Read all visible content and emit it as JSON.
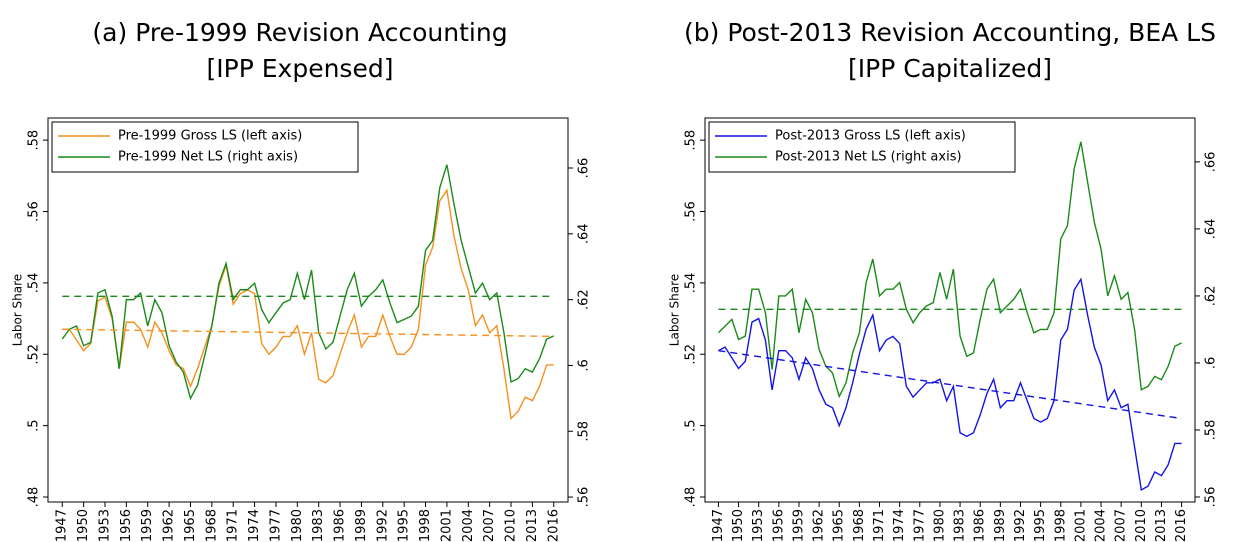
{
  "chart_data": [
    {
      "type": "line",
      "title": "(a) Pre-1999 Revision Accounting",
      "subtitle": "[IPP Expensed]",
      "y_label": "Labor Share",
      "legend": "upper left",
      "x": [
        1947,
        1948,
        1949,
        1950,
        1951,
        1952,
        1953,
        1954,
        1955,
        1956,
        1957,
        1958,
        1959,
        1960,
        1961,
        1962,
        1963,
        1964,
        1965,
        1966,
        1967,
        1968,
        1969,
        1970,
        1971,
        1972,
        1973,
        1974,
        1975,
        1976,
        1977,
        1978,
        1979,
        1980,
        1981,
        1982,
        1983,
        1984,
        1985,
        1986,
        1987,
        1988,
        1989,
        1990,
        1991,
        1992,
        1993,
        1994,
        1995,
        1996,
        1997,
        1998,
        1999,
        2000,
        2001,
        2002,
        2003,
        2004,
        2005,
        2006,
        2007,
        2008,
        2009,
        2010,
        2011,
        2012,
        2013,
        2014,
        2015,
        2016
      ],
      "xlim": [
        1945,
        2018
      ],
      "xticks": [
        1947,
        1950,
        1953,
        1956,
        1959,
        1962,
        1965,
        1968,
        1971,
        1974,
        1977,
        1980,
        1983,
        1986,
        1989,
        1992,
        1995,
        1998,
        2001,
        2004,
        2007,
        2010,
        2013,
        2016
      ],
      "ylim": [
        0.4786,
        0.5862
      ],
      "yticks": [
        {
          "value": 0.48,
          "label": ".48"
        },
        {
          "value": 0.5,
          "label": ".5"
        },
        {
          "value": 0.52,
          "label": ".52"
        },
        {
          "value": 0.54,
          "label": ".54"
        },
        {
          "value": 0.56,
          "label": ".56"
        },
        {
          "value": 0.58,
          "label": ".58"
        }
      ],
      "y2lim": [
        0.5585,
        0.6752
      ],
      "y2ticks": [
        {
          "value": 0.56,
          "label": ".56"
        },
        {
          "value": 0.58,
          "label": ".58"
        },
        {
          "value": 0.6,
          "label": ".6"
        },
        {
          "value": 0.62,
          "label": ".62"
        },
        {
          "value": 0.64,
          "label": ".64"
        },
        {
          "value": 0.66,
          "label": ".66"
        }
      ],
      "series": [
        {
          "name": "Pre-1999 Gross LS (left axis)",
          "color": "#f5901e",
          "values": [
            0.527,
            0.527,
            0.524,
            0.521,
            0.523,
            0.535,
            0.536,
            0.53,
            0.516,
            0.529,
            0.529,
            0.527,
            0.522,
            0.529,
            0.526,
            0.521,
            0.517,
            0.516,
            0.511,
            0.516,
            0.522,
            0.528,
            0.539,
            0.545,
            0.534,
            0.537,
            0.538,
            0.537,
            0.523,
            0.52,
            0.522,
            0.525,
            0.525,
            0.528,
            0.52,
            0.526,
            0.513,
            0.512,
            0.514,
            0.52,
            0.526,
            0.531,
            0.522,
            0.525,
            0.525,
            0.531,
            0.525,
            0.52,
            0.52,
            0.522,
            0.527,
            0.545,
            0.55,
            0.563,
            0.566,
            0.553,
            0.544,
            0.538,
            0.528,
            0.531,
            0.526,
            0.528,
            0.516,
            0.502,
            0.504,
            0.508,
            0.507,
            0.511,
            0.517,
            0.517
          ]
        },
        {
          "name": "Pre-1999 Net LS (right axis)",
          "color": "#1a8a1a",
          "axis": "y2",
          "values": [
            0.608,
            0.611,
            0.612,
            0.606,
            0.607,
            0.622,
            0.623,
            0.615,
            0.599,
            0.62,
            0.62,
            0.622,
            0.612,
            0.62,
            0.616,
            0.606,
            0.601,
            0.598,
            0.59,
            0.594,
            0.603,
            0.612,
            0.625,
            0.631,
            0.62,
            0.623,
            0.623,
            0.625,
            0.617,
            0.613,
            0.616,
            0.619,
            0.62,
            0.628,
            0.62,
            0.629,
            0.61,
            0.605,
            0.607,
            0.615,
            0.623,
            0.628,
            0.618,
            0.621,
            0.623,
            0.626,
            0.619,
            0.613,
            0.614,
            0.615,
            0.618,
            0.635,
            0.638,
            0.654,
            0.661,
            0.649,
            0.638,
            0.63,
            0.622,
            0.625,
            0.62,
            0.622,
            0.61,
            0.595,
            0.596,
            0.599,
            0.598,
            0.602,
            0.608,
            0.609
          ]
        },
        {
          "color": "#f5901e",
          "dashed": true,
          "x": [
            1947,
            2016
          ],
          "values": [
            0.527,
            0.525
          ]
        },
        {
          "color": "#1a8a1a",
          "dashed": true,
          "axis": "y2",
          "x": [
            1947,
            2016
          ],
          "values": [
            0.621,
            0.621
          ]
        }
      ]
    },
    {
      "type": "line",
      "title": "(b) Post-2013 Revision Accounting, BEA LS",
      "subtitle": "[IPP Capitalized]",
      "y_label": "Labor Share",
      "legend": "upper left",
      "x": [
        1947,
        1948,
        1949,
        1950,
        1951,
        1952,
        1953,
        1954,
        1955,
        1956,
        1957,
        1958,
        1959,
        1960,
        1961,
        1962,
        1963,
        1964,
        1965,
        1966,
        1967,
        1968,
        1969,
        1970,
        1971,
        1972,
        1973,
        1974,
        1975,
        1976,
        1977,
        1978,
        1979,
        1980,
        1981,
        1982,
        1983,
        1984,
        1985,
        1986,
        1987,
        1988,
        1989,
        1990,
        1991,
        1992,
        1993,
        1994,
        1995,
        1996,
        1997,
        1998,
        1999,
        2000,
        2001,
        2002,
        2003,
        2004,
        2005,
        2006,
        2007,
        2008,
        2009,
        2010,
        2011,
        2012,
        2013,
        2014,
        2015,
        2016
      ],
      "xlim": [
        1945,
        2018
      ],
      "xticks": [
        1947,
        1950,
        1953,
        1956,
        1959,
        1962,
        1965,
        1968,
        1971,
        1974,
        1977,
        1980,
        1983,
        1986,
        1989,
        1992,
        1995,
        1998,
        2001,
        2004,
        2007,
        2010,
        2013,
        2016
      ],
      "ylim": [
        0.4786,
        0.5862
      ],
      "yticks": [
        {
          "value": 0.48,
          "label": ".48"
        },
        {
          "value": 0.5,
          "label": ".5"
        },
        {
          "value": 0.52,
          "label": ".52"
        },
        {
          "value": 0.54,
          "label": ".54"
        },
        {
          "value": 0.56,
          "label": ".56"
        },
        {
          "value": 0.58,
          "label": ".58"
        }
      ],
      "y2lim": [
        0.5585,
        0.6731
      ],
      "y2ticks": [
        {
          "value": 0.56,
          "label": ".56"
        },
        {
          "value": 0.58,
          "label": ".58"
        },
        {
          "value": 0.6,
          "label": ".6"
        },
        {
          "value": 0.62,
          "label": ".62"
        },
        {
          "value": 0.64,
          "label": ".64"
        },
        {
          "value": 0.66,
          "label": ".66"
        }
      ],
      "series": [
        {
          "name": "Post-2013 Gross LS (left axis)",
          "color": "#1414e6",
          "values": [
            0.521,
            0.522,
            0.519,
            0.516,
            0.518,
            0.529,
            0.53,
            0.524,
            0.51,
            0.521,
            0.521,
            0.519,
            0.513,
            0.519,
            0.516,
            0.51,
            0.506,
            0.505,
            0.5,
            0.505,
            0.512,
            0.52,
            0.527,
            0.531,
            0.521,
            0.524,
            0.525,
            0.523,
            0.511,
            0.508,
            0.51,
            0.512,
            0.512,
            0.513,
            0.507,
            0.511,
            0.498,
            0.497,
            0.498,
            0.503,
            0.509,
            0.513,
            0.505,
            0.507,
            0.507,
            0.512,
            0.507,
            0.502,
            0.501,
            0.502,
            0.507,
            0.524,
            0.527,
            0.538,
            0.541,
            0.531,
            0.522,
            0.517,
            0.507,
            0.51,
            0.505,
            0.506,
            0.494,
            0.482,
            0.483,
            0.487,
            0.486,
            0.489,
            0.495,
            0.495
          ]
        },
        {
          "name": "Post-2013 Net LS (right axis)",
          "color": "#1a8a1a",
          "axis": "y2",
          "values": [
            0.609,
            0.611,
            0.613,
            0.607,
            0.608,
            0.622,
            0.622,
            0.615,
            0.598,
            0.62,
            0.62,
            0.622,
            0.609,
            0.619,
            0.615,
            0.604,
            0.599,
            0.597,
            0.59,
            0.594,
            0.603,
            0.609,
            0.624,
            0.631,
            0.62,
            0.622,
            0.622,
            0.624,
            0.616,
            0.612,
            0.615,
            0.617,
            0.618,
            0.627,
            0.619,
            0.628,
            0.608,
            0.602,
            0.603,
            0.613,
            0.622,
            0.625,
            0.615,
            0.617,
            0.619,
            0.622,
            0.615,
            0.609,
            0.61,
            0.61,
            0.615,
            0.637,
            0.641,
            0.658,
            0.666,
            0.654,
            0.642,
            0.634,
            0.62,
            0.626,
            0.619,
            0.621,
            0.61,
            0.592,
            0.593,
            0.596,
            0.595,
            0.599,
            0.605,
            0.606
          ]
        },
        {
          "color": "#1414e6",
          "dashed": true,
          "x": [
            1947,
            2016
          ],
          "values": [
            0.521,
            0.502
          ]
        },
        {
          "color": "#1a8a1a",
          "dashed": true,
          "axis": "y2",
          "x": [
            1947,
            2016
          ],
          "values": [
            0.616,
            0.616
          ]
        }
      ]
    }
  ]
}
